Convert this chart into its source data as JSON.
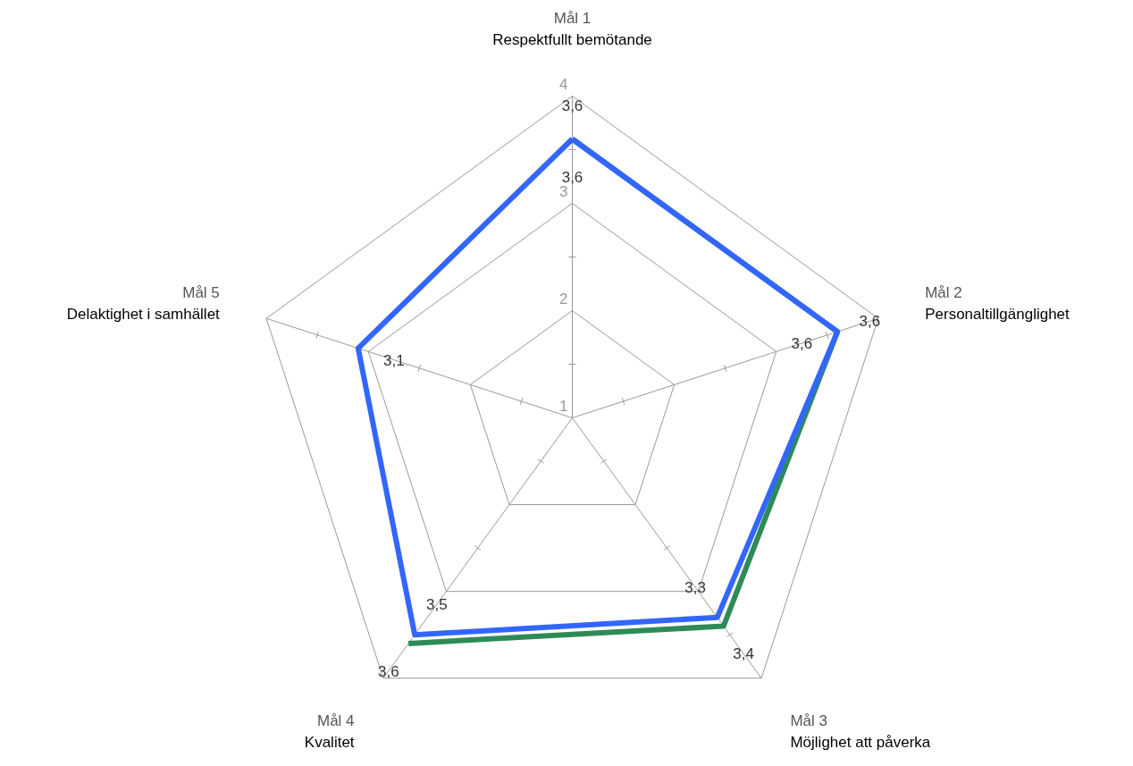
{
  "chart_data": {
    "type": "radar",
    "categories": [
      "Mål 1\nRespektfullt bemötande",
      "Mål 2\nPersonaltillgänglighet",
      "Mål 3\nMöjlighet att påverka",
      "Mål 4\nKvalitet",
      "Mål 5\nDelaktighet i samhället"
    ],
    "series": [
      {
        "color": "#2e8b57",
        "values": [
          3.6,
          3.6,
          3.4,
          3.6,
          null
        ],
        "value_labels": [
          "3,6",
          "3,6",
          "3,4",
          "3,6",
          null
        ]
      },
      {
        "color": "#3366ff",
        "values": [
          3.6,
          3.6,
          3.3,
          3.5,
          3.1
        ],
        "value_labels": [
          "3,6",
          "3,6",
          "3,3",
          "3,5",
          "3,1"
        ]
      }
    ],
    "ylim": [
      1,
      4
    ],
    "yticks": [
      1,
      2,
      3,
      4
    ],
    "grid": true
  }
}
